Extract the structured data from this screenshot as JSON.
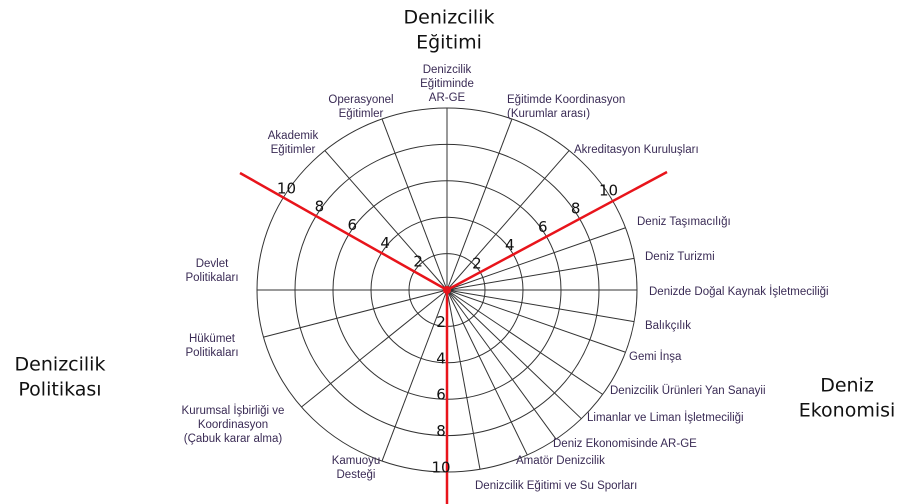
{
  "sections": [
    {
      "lines": [
        "Denizcilik",
        "Eğitimi"
      ]
    },
    {
      "lines": [
        "Deniz",
        "Ekonomisi"
      ]
    },
    {
      "lines": [
        "Denizcilik",
        "Politikası"
      ]
    }
  ],
  "rings": [
    "2",
    "4",
    "6",
    "8",
    "10"
  ],
  "spokes": [
    {
      "lines": [
        "Denizcilik",
        "Eğitiminde",
        "AR-GE"
      ]
    },
    {
      "lines": [
        "Eğitimde Koordinasyon",
        "(Kurumlar arası)"
      ]
    },
    {
      "lines": [
        "Akreditasyon Kuruluşları"
      ]
    },
    {
      "lines": [
        "Deniz Taşımacılığı"
      ]
    },
    {
      "lines": [
        "Deniz Turizmi"
      ]
    },
    {
      "lines": [
        "Denizde Doğal Kaynak İşletmeciliği"
      ]
    },
    {
      "lines": [
        "Balıkçılık"
      ]
    },
    {
      "lines": [
        "Gemi İnşa"
      ]
    },
    {
      "lines": [
        "Denizcilik Ürünleri Yan Sanayii"
      ]
    },
    {
      "lines": [
        "Limanlar ve Liman İşletmeciliği"
      ]
    },
    {
      "lines": [
        "Deniz Ekonomisinde AR-GE"
      ]
    },
    {
      "lines": [
        "Amatör Denizcilik"
      ]
    },
    {
      "lines": [
        "Denizcilik Eğitimi ve Su Sporları"
      ]
    },
    {
      "lines": [
        "Kamuoyu",
        "Desteği"
      ]
    },
    {
      "lines": [
        "Kurumsal İşbirliği ve",
        "Koordinasyon",
        "(Çabuk karar alma)"
      ]
    },
    {
      "lines": [
        "Hükümet",
        "Politikaları"
      ]
    },
    {
      "lines": [
        "Devlet",
        "Politikaları"
      ]
    },
    {
      "lines": [
        "Akademik",
        "Eğitimler"
      ]
    },
    {
      "lines": [
        "Operasyonel",
        "Eğitimler"
      ]
    }
  ]
}
